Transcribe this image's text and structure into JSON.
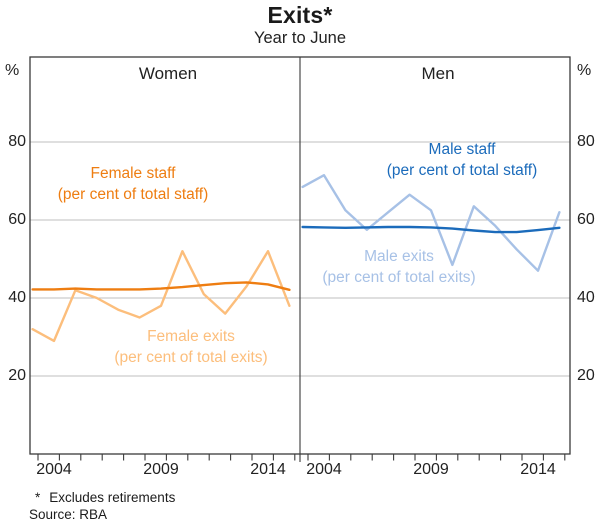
{
  "title": "Exits*",
  "subtitle": "Year to June",
  "percent_left": "%",
  "percent_right": "%",
  "panels": {
    "left_title": "Women",
    "right_title": "Men"
  },
  "annotations": {
    "female_staff": {
      "line1": "Female staff",
      "line2": "(per cent of total staff)"
    },
    "female_exits": {
      "line1": "Female exits",
      "line2": "(per cent of total exits)"
    },
    "male_staff": {
      "line1": "Male staff",
      "line2": "(per cent of total staff)"
    },
    "male_exits": {
      "line1": "Male exits",
      "line2": "(per cent of total exits)"
    }
  },
  "footnote_marker": "*",
  "footnote_text": "Excludes retirements",
  "source": "Source: RBA",
  "colors": {
    "female_staff": "#ee7d11",
    "female_exits": "#fcbe7c",
    "male_staff": "#1b6bbb",
    "male_exits": "#a7c1e6",
    "frame": "#3a3a3a",
    "gridline": "#bfbfbf",
    "text": "#222222"
  },
  "chart_data": {
    "type": "line",
    "title": "Exits* — Year to June",
    "ylabel": "%",
    "ylim": [
      0,
      102
    ],
    "y_ticks": [
      20,
      40,
      60,
      80
    ],
    "x": [
      2003,
      2004,
      2005,
      2006,
      2007,
      2008,
      2009,
      2010,
      2011,
      2012,
      2013,
      2014,
      2015
    ],
    "x_tick_years": [
      2004,
      2009,
      2014
    ],
    "x_tick_labels": [
      "2004",
      "2009",
      "2014"
    ],
    "grid": "horizontal",
    "legend_position": "inline-annotations",
    "panels": [
      {
        "title": "Women",
        "series": [
          {
            "name": "Female exits (per cent of total exits)",
            "color_key": "female_exits",
            "values": [
              32,
              29,
              42,
              40,
              37,
              35,
              38,
              52,
              41,
              36,
              43,
              52,
              38
            ]
          },
          {
            "name": "Female staff (per cent of total staff)",
            "color_key": "female_staff",
            "values": [
              42.2,
              42.2,
              42.4,
              42.2,
              42.2,
              42.2,
              42.4,
              42.8,
              43.3,
              43.8,
              44.0,
              43.5,
              42.1
            ]
          }
        ]
      },
      {
        "title": "Men",
        "series": [
          {
            "name": "Male exits (per cent of total exits)",
            "color_key": "male_exits",
            "values": [
              68.5,
              71.5,
              62.5,
              57.5,
              62,
              66.5,
              62.5,
              48.5,
              63.5,
              58.5,
              52.5,
              47,
              62
            ]
          },
          {
            "name": "Male staff (per cent of total staff)",
            "color_key": "male_staff",
            "values": [
              58.2,
              58.1,
              58.0,
              58.1,
              58.2,
              58.2,
              58.1,
              57.8,
              57.3,
              56.9,
              56.9,
              57.4,
              58.0
            ]
          }
        ]
      }
    ]
  }
}
